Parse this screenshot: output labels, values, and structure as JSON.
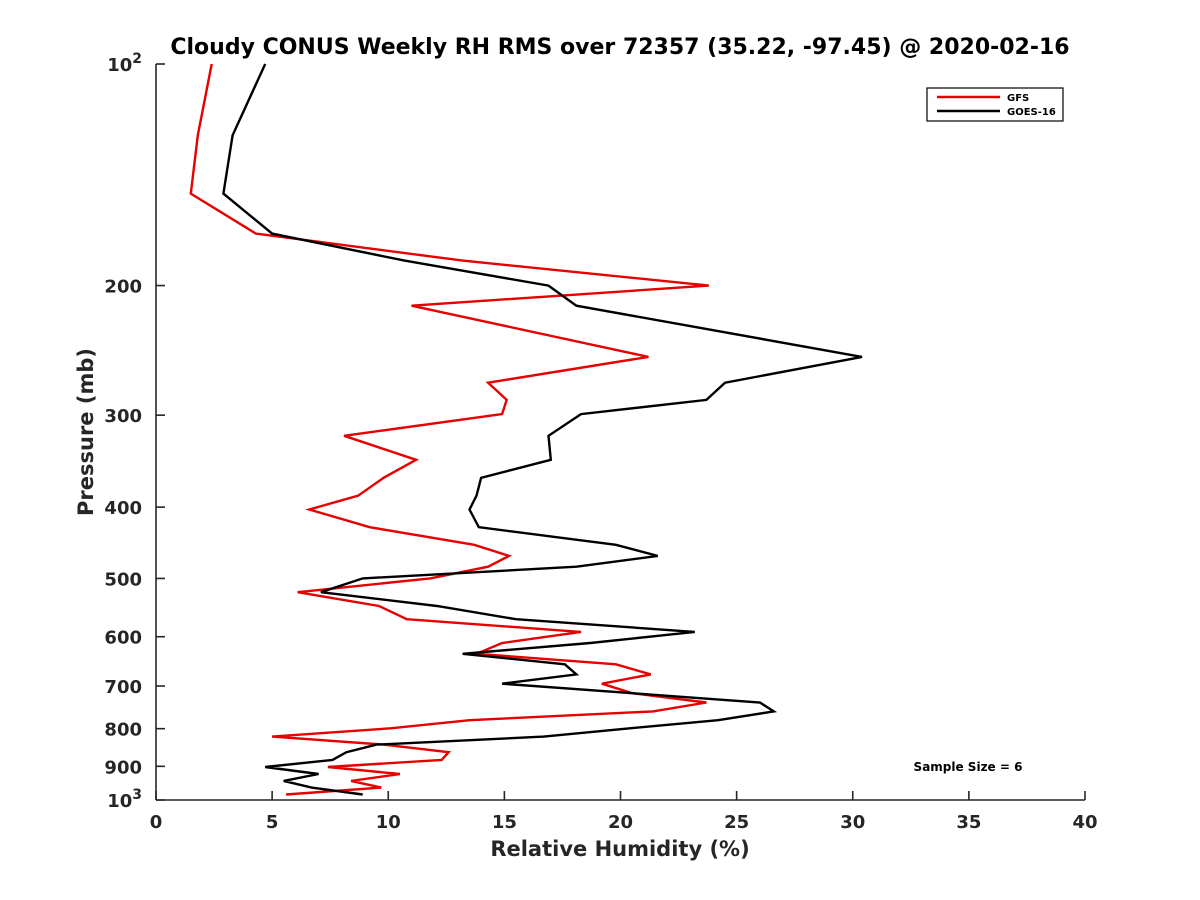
{
  "chart_data": {
    "type": "line",
    "title": "Cloudy CONUS Weekly RH RMS over 72357 (35.22, -97.45) @ 2020-02-16",
    "xlabel": "Relative Humidity (%)",
    "ylabel": "Pressure (mb)",
    "xlim": [
      0,
      40
    ],
    "ylim": [
      100,
      1000
    ],
    "y_scale": "log",
    "y_reversed": true,
    "x_ticks": [
      "0",
      "5",
      "10",
      "15",
      "20",
      "25",
      "30",
      "35",
      "40"
    ],
    "y_ticks": [
      {
        "value": 100,
        "base": "10",
        "exp": "2"
      },
      {
        "value": 200,
        "label": "200"
      },
      {
        "value": 300,
        "label": "300"
      },
      {
        "value": 400,
        "label": "400"
      },
      {
        "value": 500,
        "label": "500"
      },
      {
        "value": 600,
        "label": "600"
      },
      {
        "value": 700,
        "label": "700"
      },
      {
        "value": 800,
        "label": "800"
      },
      {
        "value": 900,
        "label": "900"
      },
      {
        "value": 1000,
        "base": "10",
        "exp": "3"
      }
    ],
    "grid": false,
    "legend_position": "top-right",
    "annotation": "Sample Size = 6",
    "series": [
      {
        "name": "GFS",
        "color": "#e60000",
        "points": [
          [
            2.4,
            100
          ],
          [
            1.8,
            125
          ],
          [
            1.5,
            150
          ],
          [
            4.3,
            170
          ],
          [
            13.2,
            185
          ],
          [
            23.8,
            200
          ],
          [
            11.0,
            213
          ],
          [
            21.2,
            250
          ],
          [
            14.3,
            271
          ],
          [
            15.1,
            286
          ],
          [
            14.9,
            299
          ],
          [
            8.1,
            320
          ],
          [
            11.2,
            345
          ],
          [
            9.8,
            365
          ],
          [
            8.7,
            386
          ],
          [
            6.6,
            403
          ],
          [
            9.2,
            426
          ],
          [
            13.7,
            450
          ],
          [
            15.2,
            466
          ],
          [
            14.3,
            482
          ],
          [
            11.8,
            500
          ],
          [
            6.1,
            522
          ],
          [
            9.6,
            545
          ],
          [
            10.8,
            568
          ],
          [
            18.3,
            591
          ],
          [
            14.9,
            612
          ],
          [
            13.8,
            633
          ],
          [
            19.8,
            654
          ],
          [
            21.3,
            675
          ],
          [
            19.2,
            695
          ],
          [
            20.5,
            716
          ],
          [
            23.7,
            737
          ],
          [
            21.4,
            758
          ],
          [
            13.5,
            779
          ],
          [
            10.1,
            799
          ],
          [
            5.0,
            820
          ],
          [
            9.8,
            841
          ],
          [
            12.6,
            861
          ],
          [
            12.3,
            882
          ],
          [
            7.4,
            902
          ],
          [
            10.5,
            922
          ],
          [
            8.4,
            942
          ],
          [
            9.7,
            962
          ],
          [
            5.6,
            983
          ]
        ]
      },
      {
        "name": "GOES-16",
        "color": "#000000",
        "points": [
          [
            4.7,
            100
          ],
          [
            3.3,
            125
          ],
          [
            2.9,
            150
          ],
          [
            5.0,
            170
          ],
          [
            10.7,
            185
          ],
          [
            16.9,
            200
          ],
          [
            18.1,
            213
          ],
          [
            30.4,
            250
          ],
          [
            24.5,
            271
          ],
          [
            23.7,
            286
          ],
          [
            18.3,
            299
          ],
          [
            16.9,
            320
          ],
          [
            17.0,
            345
          ],
          [
            14.0,
            365
          ],
          [
            13.8,
            386
          ],
          [
            13.5,
            403
          ],
          [
            13.9,
            426
          ],
          [
            19.8,
            450
          ],
          [
            21.6,
            466
          ],
          [
            18.1,
            482
          ],
          [
            8.9,
            500
          ],
          [
            7.1,
            522
          ],
          [
            12.1,
            545
          ],
          [
            15.5,
            568
          ],
          [
            23.2,
            591
          ],
          [
            18.7,
            612
          ],
          [
            13.2,
            633
          ],
          [
            17.6,
            654
          ],
          [
            18.1,
            675
          ],
          [
            14.9,
            695
          ],
          [
            20.5,
            716
          ],
          [
            26.0,
            737
          ],
          [
            26.6,
            758
          ],
          [
            24.2,
            779
          ],
          [
            20.4,
            799
          ],
          [
            16.7,
            820
          ],
          [
            9.5,
            841
          ],
          [
            8.2,
            861
          ],
          [
            7.6,
            882
          ],
          [
            4.7,
            902
          ],
          [
            7.0,
            922
          ],
          [
            5.5,
            942
          ],
          [
            6.7,
            962
          ],
          [
            8.9,
            983
          ]
        ]
      }
    ]
  }
}
